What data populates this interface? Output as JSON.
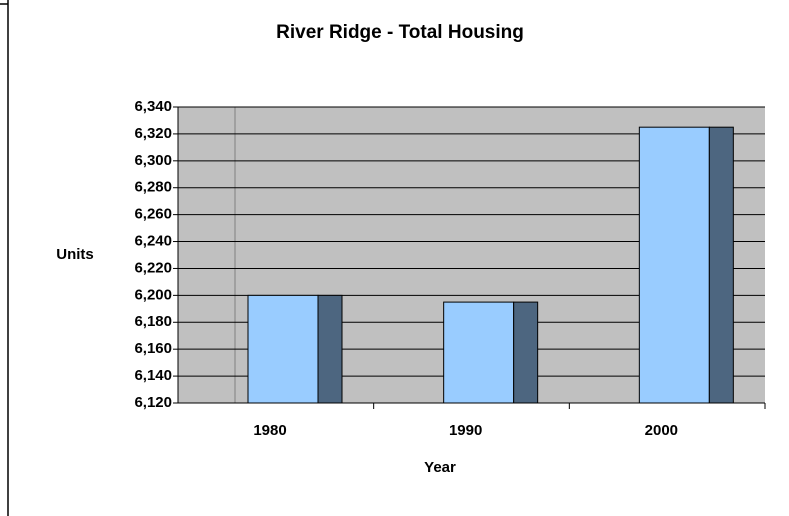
{
  "chart_data": {
    "type": "bar",
    "title": "River Ridge - Total Housing",
    "x_label": "Year",
    "y_label": "Units",
    "categories": [
      "1980",
      "1990",
      "2000"
    ],
    "values": [
      6200,
      6195,
      6325
    ],
    "color": "#99ccff",
    "side_color": "#4d6680",
    "background": "#c0c0c0",
    "ylim": [
      6120,
      6340
    ],
    "yticks": [
      {
        "value": 6120,
        "label": "6,120"
      },
      {
        "value": 6140,
        "label": "6,140"
      },
      {
        "value": 6160,
        "label": "6,160"
      },
      {
        "value": 6180,
        "label": "6,180"
      },
      {
        "value": 6200,
        "label": "6,200"
      },
      {
        "value": 6220,
        "label": "6,220"
      },
      {
        "value": 6240,
        "label": "6,240"
      },
      {
        "value": 6260,
        "label": "6,260"
      },
      {
        "value": 6280,
        "label": "6,280"
      },
      {
        "value": 6300,
        "label": "6,300"
      },
      {
        "value": 6320,
        "label": "6,320"
      },
      {
        "value": 6340,
        "label": "6,340"
      }
    ],
    "grid": true
  }
}
